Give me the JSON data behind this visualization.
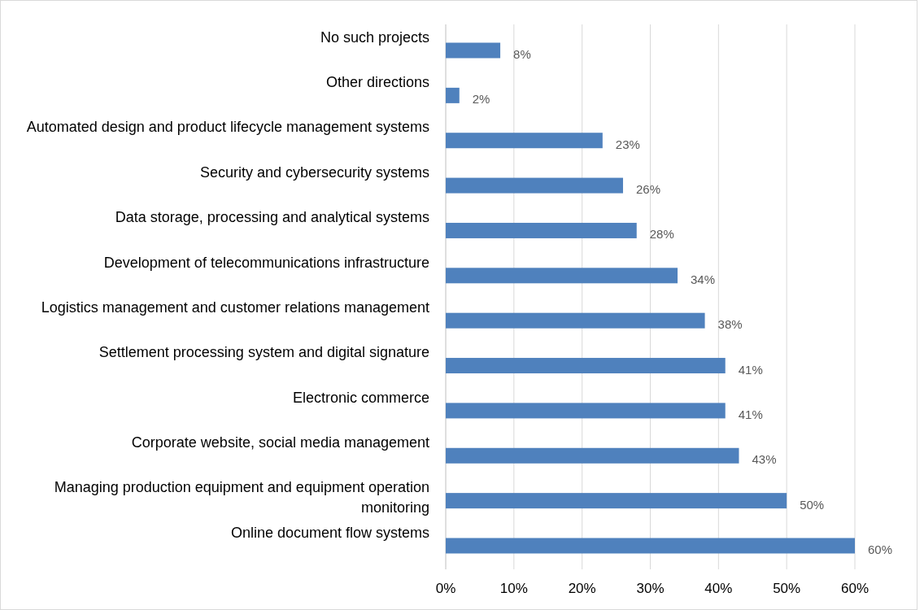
{
  "chart_data": {
    "type": "bar",
    "orientation": "horizontal",
    "categories": [
      "No such projects",
      "Other directions",
      "Automated design and product lifecycle management systems",
      "Security and cybersecurity systems",
      "Data storage, processing and analytical systems",
      "Development of telecommunications infrastructure",
      "Logistics management and customer relations management",
      "Settlement processing system and digital signature",
      "Electronic commerce",
      "Corporate website, social media management",
      "Managing production equipment and equipment operation monitoring",
      "Online document flow systems"
    ],
    "values": [
      8,
      2,
      23,
      26,
      28,
      34,
      38,
      41,
      41,
      43,
      50,
      60
    ],
    "value_labels": [
      "8%",
      "2%",
      "23%",
      "26%",
      "28%",
      "34%",
      "38%",
      "41%",
      "41%",
      "43%",
      "50%",
      "60%"
    ],
    "color": "#4f81bd",
    "xlim": [
      0,
      60
    ],
    "xticks": [
      {
        "value": 0,
        "label": "0%"
      },
      {
        "value": 10,
        "label": "10%"
      },
      {
        "value": 20,
        "label": "20%"
      },
      {
        "value": 30,
        "label": "30%"
      },
      {
        "value": 40,
        "label": "40%"
      },
      {
        "value": 50,
        "label": "50%"
      },
      {
        "value": 60,
        "label": "60%"
      }
    ],
    "grid": "x"
  }
}
